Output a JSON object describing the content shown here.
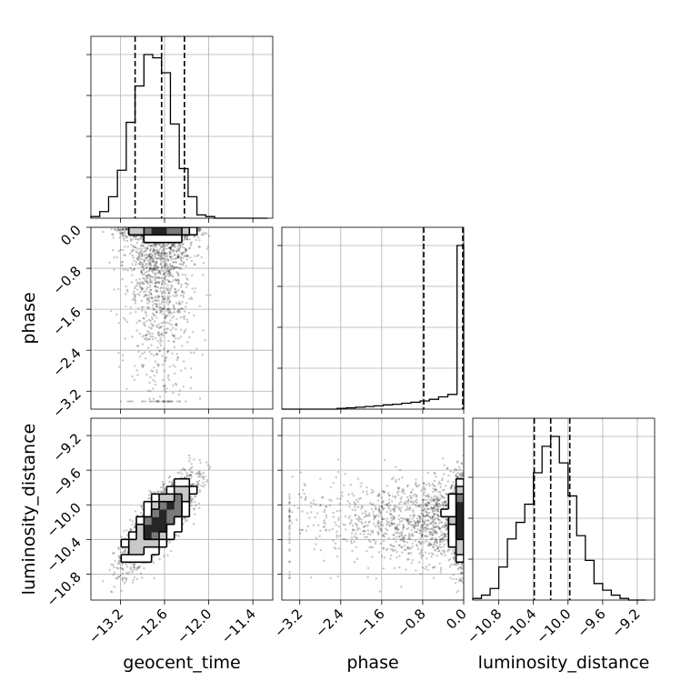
{
  "chart_data": {
    "type": "corner",
    "params": [
      "geocent_time",
      "phase",
      "luminosity_distance"
    ],
    "axis_labels": {
      "bottom": [
        "geocent_time",
        "phase",
        "luminosity_distance"
      ],
      "left": [
        "phase",
        "luminosity_distance"
      ]
    },
    "ticks": {
      "geocent_time": [
        "−13.2",
        "−12.6",
        "−12.0",
        "−11.4"
      ],
      "phase": [
        "−3.2",
        "−2.4",
        "−1.6",
        "−0.8",
        "0.0"
      ],
      "phase_y": [
        "0.0",
        "−0.8",
        "−1.6",
        "−2.4",
        "−3.2"
      ],
      "luminosity_distance": [
        "−10.8",
        "−10.4",
        "−10.0",
        "−9.6",
        "−9.2"
      ],
      "luminosity_distance_y": [
        "−9.2",
        "−9.6",
        "−10.0",
        "−10.4",
        "−10.8"
      ]
    },
    "ranges": {
      "geocent_time": [
        -13.6,
        -11.13
      ],
      "phase": [
        -3.55,
        0.0
      ],
      "luminosity_distance": [
        -11.1,
        -9.0
      ]
    },
    "quantiles": {
      "geocent_time": [
        -13.0,
        -12.64,
        -12.33
      ],
      "phase": [
        -0.78,
        0.0
      ],
      "luminosity_distance": [
        -10.39,
        -10.2,
        -9.98
      ]
    },
    "histograms": {
      "geocent_time": {
        "edges": [
          -13.6,
          -13.48,
          -13.36,
          -13.24,
          -13.12,
          -13.0,
          -12.88,
          -12.76,
          -12.64,
          -12.52,
          -12.4,
          -12.28,
          -12.16,
          -12.04,
          -11.92,
          -11.8,
          -11.68,
          -11.56,
          -11.44,
          -11.32,
          -11.2
        ],
        "counts": [
          0.01,
          0.04,
          0.13,
          0.29,
          0.58,
          0.8,
          0.99,
          0.97,
          0.88,
          0.57,
          0.3,
          0.13,
          0.02,
          0.01,
          0,
          0,
          0,
          0,
          0,
          0
        ]
      },
      "phase": {
        "edges": [
          -3.55,
          -3.37,
          -3.19,
          -3.01,
          -2.83,
          -2.65,
          -2.47,
          -2.29,
          -2.11,
          -1.93,
          -1.75,
          -1.57,
          -1.39,
          -1.21,
          -1.03,
          -0.85,
          -0.67,
          -0.49,
          -0.31,
          -0.13,
          0.0
        ],
        "counts": [
          0,
          0,
          0,
          0,
          0,
          0,
          0.005,
          0.008,
          0.012,
          0.016,
          0.02,
          0.026,
          0.03,
          0.036,
          0.042,
          0.05,
          0.06,
          0.075,
          0.09,
          1.0
        ]
      },
      "luminosity_distance": {
        "edges": [
          -11.1,
          -11.0,
          -10.9,
          -10.8,
          -10.7,
          -10.6,
          -10.5,
          -10.4,
          -10.3,
          -10.2,
          -10.1,
          -10.0,
          -9.9,
          -9.8,
          -9.7,
          -9.6,
          -9.5,
          -9.4,
          -9.3,
          -9.2,
          -9.1
        ],
        "counts": [
          0.01,
          0.03,
          0.07,
          0.2,
          0.37,
          0.47,
          0.58,
          0.77,
          0.93,
          0.99,
          0.83,
          0.63,
          0.39,
          0.24,
          0.1,
          0.06,
          0.03,
          0.01,
          0,
          0
        ]
      }
    },
    "grid": true,
    "density_color": "#000000"
  }
}
